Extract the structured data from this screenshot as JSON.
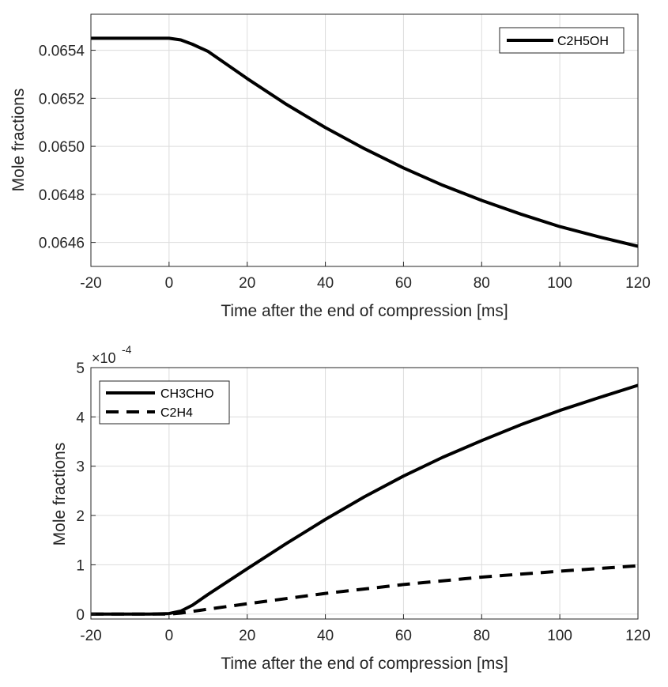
{
  "chart_data": [
    {
      "type": "line",
      "xlabel": "Time after the end of compression [ms]",
      "ylabel": "Mole fractions",
      "xlim": [
        -20,
        120
      ],
      "ylim": [
        0.0645,
        0.06555
      ],
      "xticks": [
        -20,
        0,
        20,
        40,
        60,
        80,
        100,
        120
      ],
      "xtick_labels": [
        "-20",
        "0",
        "20",
        "40",
        "60",
        "80",
        "100",
        "120"
      ],
      "yticks": [
        0.0646,
        0.0648,
        0.065,
        0.0652,
        0.0654
      ],
      "ytick_labels": [
        "0.0646",
        "0.0648",
        "0.0650",
        "0.0652",
        "0.0654"
      ],
      "grid": true,
      "legend_position": "top-right",
      "series": [
        {
          "name": "C2H5OH",
          "style": "solid",
          "color": "#000000",
          "x": [
            -20,
            -10,
            0,
            3,
            6,
            10,
            20,
            30,
            40,
            50,
            60,
            70,
            80,
            90,
            100,
            110,
            120
          ],
          "y": [
            0.06545,
            0.06545,
            0.06545,
            0.065443,
            0.065425,
            0.065395,
            0.065282,
            0.065175,
            0.065078,
            0.06499,
            0.06491,
            0.064838,
            0.064775,
            0.064718,
            0.064666,
            0.064623,
            0.064584
          ]
        }
      ]
    },
    {
      "type": "line",
      "xlabel": "Time after the end of compression [ms]",
      "ylabel": "Mole fractions",
      "y_exponent": "×10^-4",
      "exp_base": "×10",
      "exp_power": "-4",
      "xlim": [
        -20,
        120
      ],
      "ylim": [
        -0.1,
        5
      ],
      "xticks": [
        -20,
        0,
        20,
        40,
        60,
        80,
        100,
        120
      ],
      "xtick_labels": [
        "-20",
        "0",
        "20",
        "40",
        "60",
        "80",
        "100",
        "120"
      ],
      "yticks": [
        0,
        1,
        2,
        3,
        4,
        5
      ],
      "ytick_labels": [
        "0",
        "1",
        "2",
        "3",
        "4",
        "5"
      ],
      "grid": true,
      "legend_position": "top-left",
      "series": [
        {
          "name": "CH3CHO",
          "style": "solid",
          "color": "#000000",
          "x": [
            -20,
            -5,
            0,
            3,
            6,
            10,
            20,
            30,
            40,
            50,
            60,
            70,
            80,
            90,
            100,
            110,
            120
          ],
          "y": [
            0,
            0,
            0.01,
            0.06,
            0.18,
            0.4,
            0.92,
            1.43,
            1.92,
            2.38,
            2.8,
            3.18,
            3.52,
            3.84,
            4.13,
            4.39,
            4.64
          ]
        },
        {
          "name": "C2H4",
          "style": "dashed",
          "color": "#000000",
          "x": [
            -20,
            -5,
            0,
            3,
            10,
            20,
            40,
            60,
            80,
            100,
            120
          ],
          "y": [
            0,
            0,
            0,
            0.02,
            0.1,
            0.21,
            0.42,
            0.6,
            0.75,
            0.87,
            0.98
          ]
        }
      ]
    }
  ]
}
